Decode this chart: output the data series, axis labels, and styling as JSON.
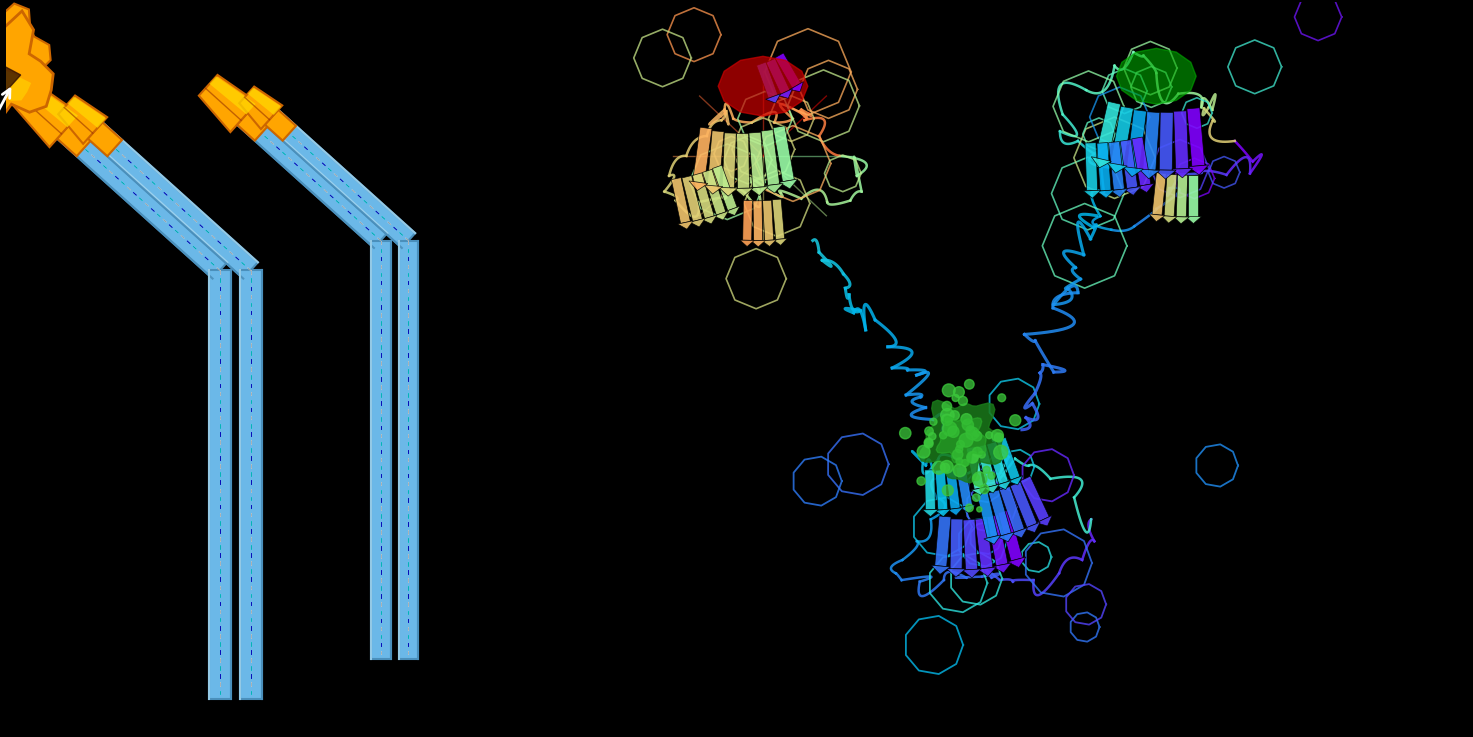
{
  "background_color": "#000000",
  "fig_width": 14.73,
  "fig_height": 7.37,
  "dpi": 100,
  "arm_color": "#6BB8E8",
  "arm_edge_color": "#4A8FBB",
  "arm_light_color": "#A8D8F0",
  "arm_inner_color": "#5AA8DC",
  "tip_color": "#FFA500",
  "tip_edge_color": "#CC6600",
  "tip_gold_color": "#FFD700",
  "antigen_color": "#FFA500",
  "antigen_edge_color": "#CC4400",
  "antigen_dark_color": "#993300",
  "arrow_color": "#FFFFFF",
  "dashed_color": "#000088"
}
